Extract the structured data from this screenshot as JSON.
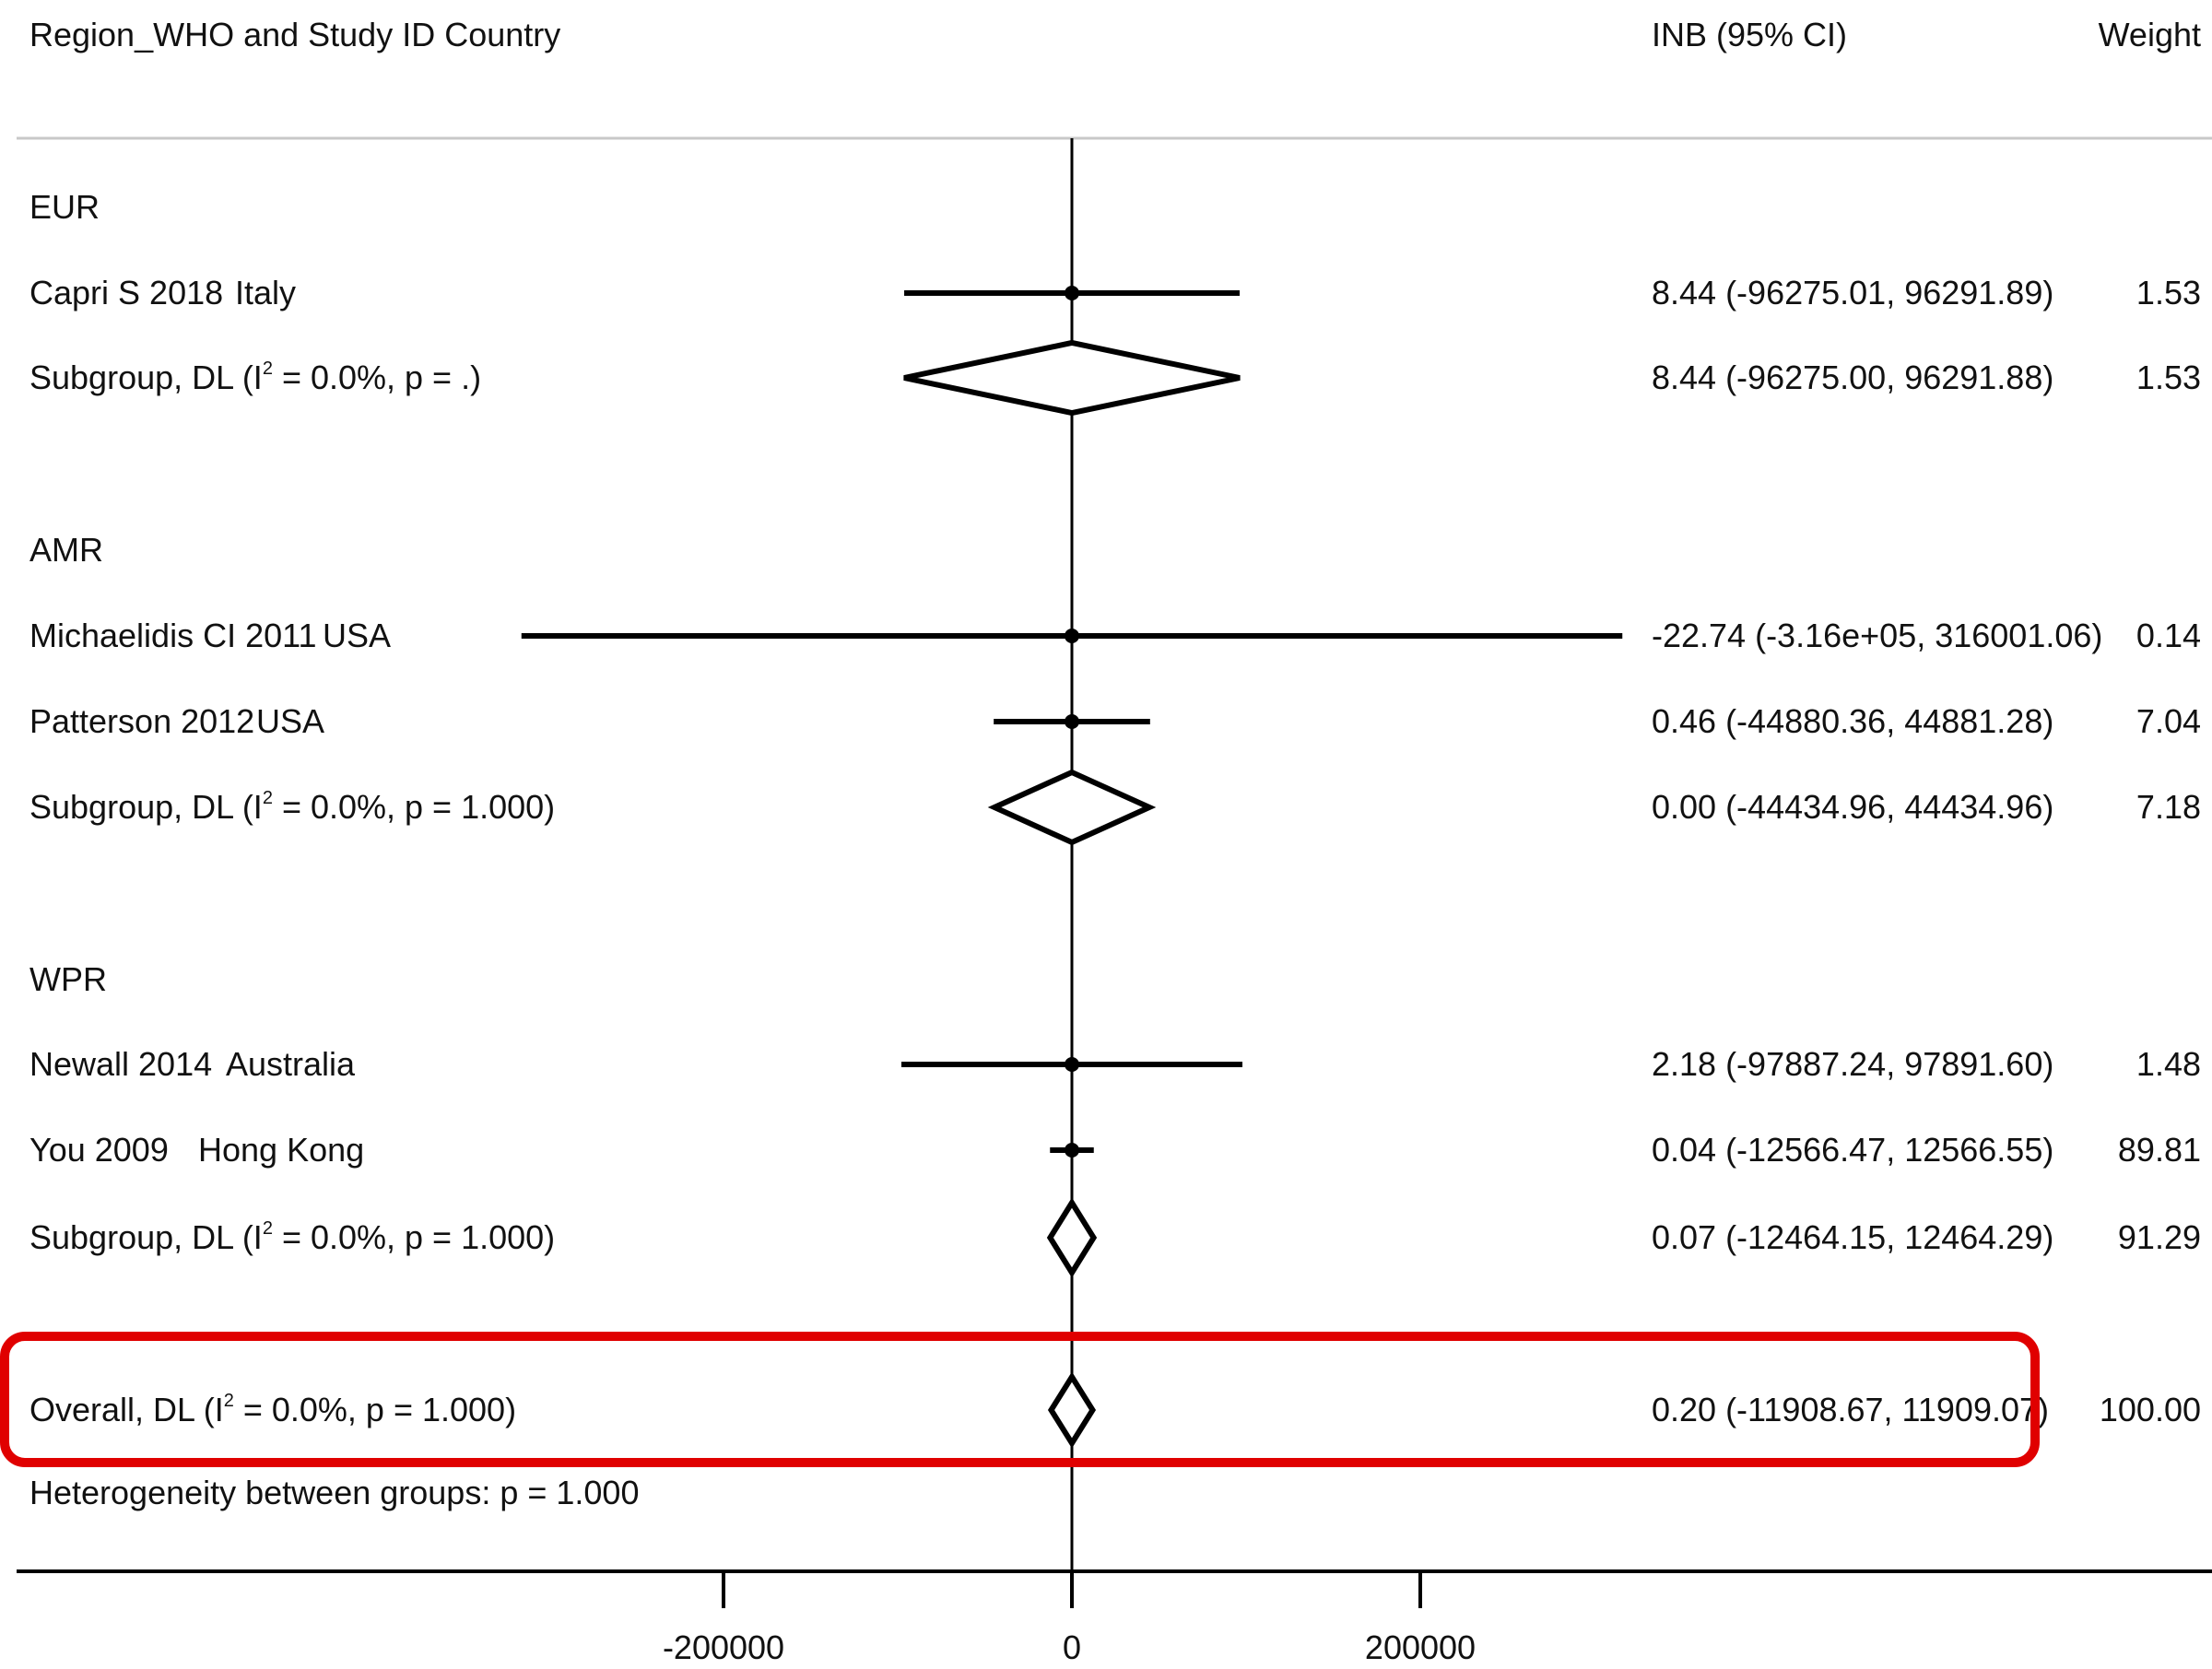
{
  "chart_data": {
    "type": "forest",
    "columns": {
      "study": "Region_WHO and Study ID Country",
      "effect": "INB (95% CI)",
      "weight": "Weight"
    },
    "x_axis": {
      "ticks": [
        -200000,
        0,
        200000
      ],
      "tick_labels": [
        "-200000",
        "0",
        "200000"
      ],
      "reference_line": 0
    },
    "rows": [
      {
        "kind": "group",
        "label": "EUR"
      },
      {
        "kind": "study",
        "label": "Capri S 2018",
        "country": "Italy",
        "est": 8.44,
        "lo": -96275.01,
        "hi": 96291.89,
        "ci_text": "8.44 (-96275.01, 96291.89)",
        "weight": "1.53"
      },
      {
        "kind": "subgroup",
        "prefix": "Subgroup, DL (I",
        "suffix": " = 0.0%, p = .)",
        "est": 8.44,
        "lo": -96275.0,
        "hi": 96291.88,
        "ci_text": "8.44 (-96275.00, 96291.88)",
        "weight": "1.53"
      },
      {
        "kind": "group",
        "label": "AMR"
      },
      {
        "kind": "study",
        "label": "Michaelidis CI 2011",
        "country": "USA",
        "est": -22.74,
        "lo": -316000,
        "hi": 316001.06,
        "ci_text": "-22.74 (-3.16e+05, 316001.06)",
        "weight": "0.14"
      },
      {
        "kind": "study",
        "label": "Patterson 2012",
        "country": "USA",
        "est": 0.46,
        "lo": -44880.36,
        "hi": 44881.28,
        "ci_text": "0.46 (-44880.36, 44881.28)",
        "weight": "7.04"
      },
      {
        "kind": "subgroup",
        "prefix": "Subgroup, DL (I",
        "suffix": " = 0.0%, p = 1.000)",
        "est": 0.0,
        "lo": -44434.96,
        "hi": 44434.96,
        "ci_text": "0.00 (-44434.96, 44434.96)",
        "weight": "7.18"
      },
      {
        "kind": "group",
        "label": "WPR"
      },
      {
        "kind": "study",
        "label": "Newall 2014",
        "country": "Australia",
        "est": 2.18,
        "lo": -97887.24,
        "hi": 97891.6,
        "ci_text": "2.18 (-97887.24, 97891.60)",
        "weight": "1.48"
      },
      {
        "kind": "study",
        "label": "You 2009",
        "country": "Hong Kong",
        "est": 0.04,
        "lo": -12566.47,
        "hi": 12566.55,
        "ci_text": "0.04 (-12566.47, 12566.55)",
        "weight": "89.81"
      },
      {
        "kind": "subgroup",
        "prefix": "Subgroup, DL (I",
        "suffix": " = 0.0%, p = 1.000)",
        "est": 0.07,
        "lo": -12464.15,
        "hi": 12464.29,
        "ci_text": "0.07 (-12464.15, 12464.29)",
        "weight": "91.29"
      },
      {
        "kind": "overall",
        "prefix": "Overall, DL (I",
        "suffix": " = 0.0%, p = 1.000)",
        "est": 0.2,
        "lo": -11908.67,
        "hi": 11909.07,
        "ci_text": "0.20 (-11908.67, 11909.07)",
        "weight": "100.00",
        "highlighted": true
      },
      {
        "kind": "note",
        "label": "Heterogeneity between groups: p = 1.000"
      }
    ],
    "superscript": "2",
    "highlight_color": "#e00000"
  }
}
